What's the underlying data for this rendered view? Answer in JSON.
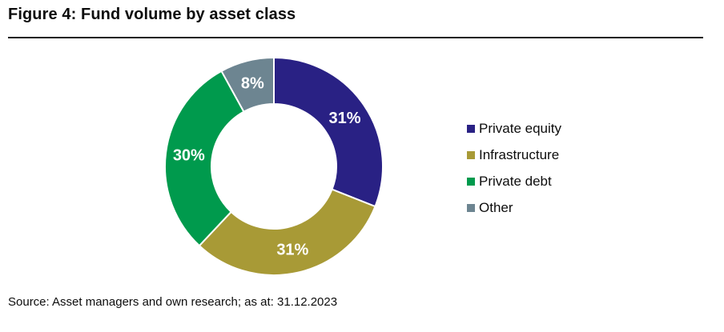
{
  "title": "Figure 4: Fund volume by asset class",
  "source": "Source: Asset managers and own research; as at: 31.12.2023",
  "chart_data": {
    "type": "pie",
    "subtype": "donut",
    "title": "Figure 4: Fund volume by asset class",
    "categories": [
      "Private equity",
      "Infrastructure",
      "Private debt",
      "Other"
    ],
    "values": [
      31,
      31,
      30,
      8
    ],
    "labels": [
      "31%",
      "31%",
      "30%",
      "8%"
    ],
    "colors": [
      "#292184",
      "#A89A36",
      "#009A4D",
      "#6D8591"
    ],
    "label_color": "#ffffff",
    "legend_position": "right",
    "start_angle_deg": -90,
    "direction": "clockwise",
    "inner_radius_ratio": 0.57
  }
}
